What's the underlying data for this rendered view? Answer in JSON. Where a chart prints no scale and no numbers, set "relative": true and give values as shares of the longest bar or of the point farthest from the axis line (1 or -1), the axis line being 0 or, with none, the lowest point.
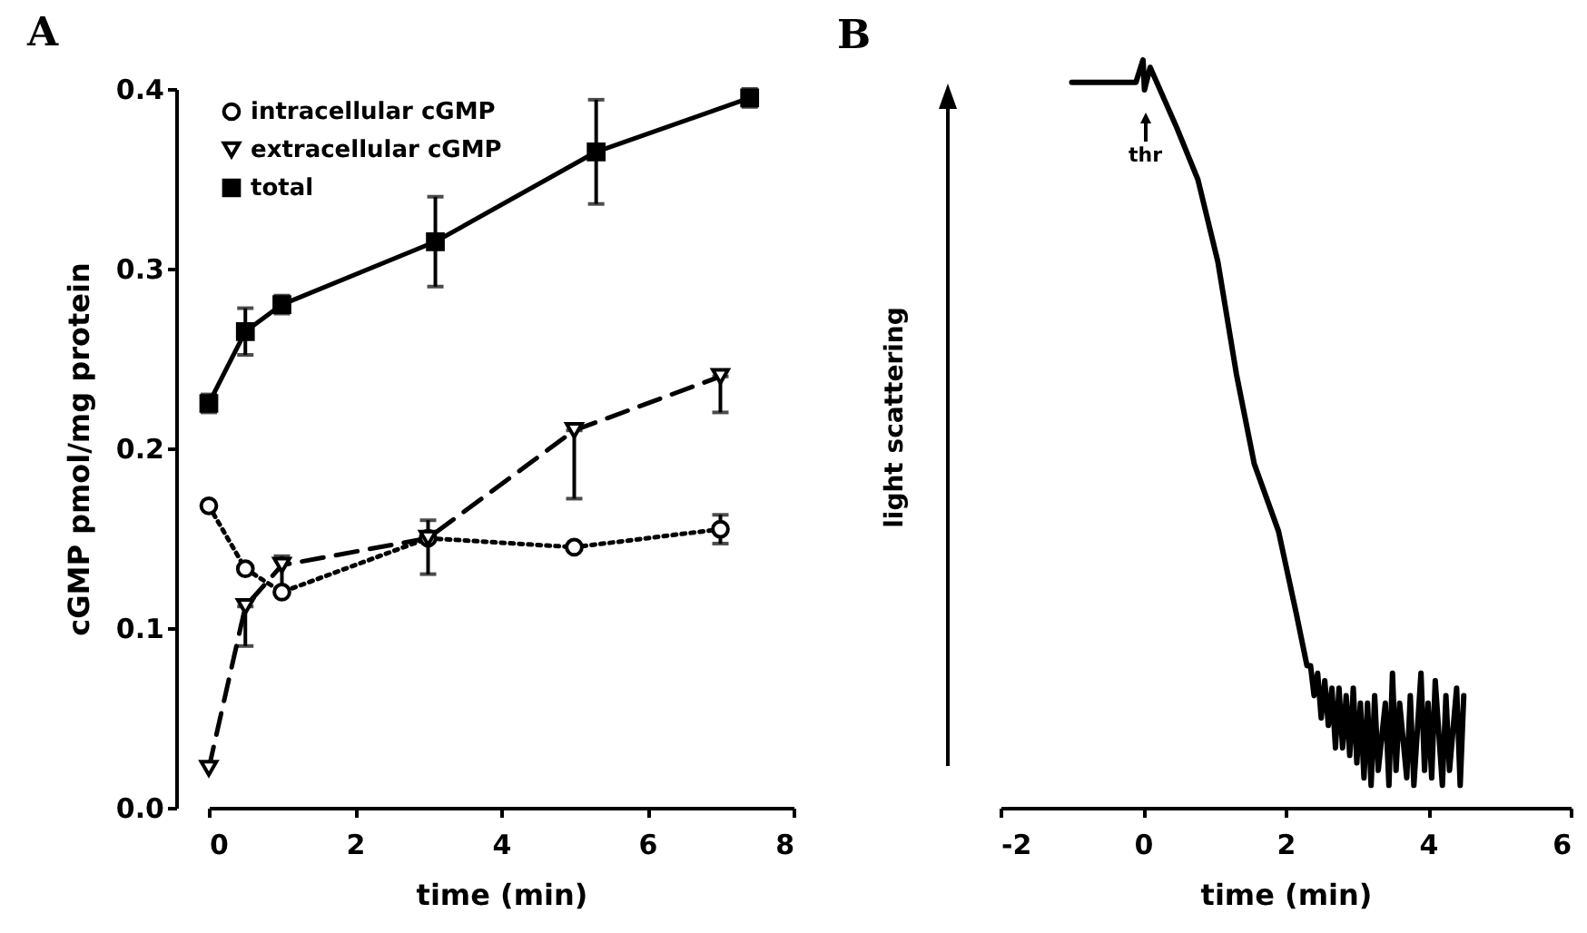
{
  "chart_data": [
    {
      "type": "line",
      "title": "A",
      "xlabel": "time (min)",
      "ylabel": "cGMP pmol/mg protein",
      "xlim": [
        0,
        8
      ],
      "xticks": [
        0,
        2,
        4,
        6,
        8
      ],
      "ylim": [
        0,
        0.4
      ],
      "yticks": [
        {
          "value": 0,
          "label": "0.0"
        },
        0.1,
        0.2,
        0.3,
        0.4
      ],
      "legend": "top left",
      "grid": false,
      "series": [
        {
          "name": "intracellular cGMP",
          "color": "#000000",
          "marker": "circle",
          "line_style": "dotted",
          "x": [
            0,
            0.5,
            1,
            3,
            5,
            7
          ],
          "values": [
            0.168,
            0.133,
            0.12,
            0.15,
            0.145,
            0.155
          ],
          "errors": [
            null,
            null,
            null,
            null,
            null,
            0.008
          ]
        },
        {
          "name": "extracellular cGMP",
          "color": "#000000",
          "marker": "triangle",
          "line_style": "dashed",
          "x": [
            0,
            0.5,
            1,
            3,
            5,
            7
          ],
          "values": [
            0.022,
            0.112,
            0.135,
            0.15,
            0.21,
            0.24
          ],
          "errors": [
            null,
            [
              0.09,
              0.112
            ],
            [
              0.12,
              0.14
            ],
            [
              0.13,
              0.16
            ],
            [
              0.172,
              0.21
            ],
            [
              0.22,
              0.24
            ]
          ]
        },
        {
          "name": "total",
          "color": "#000000",
          "marker": "square",
          "line_style": "solid",
          "x": [
            0,
            0.5,
            1,
            3.1,
            5.3,
            7.4
          ],
          "values": [
            0.225,
            0.265,
            0.28,
            0.315,
            0.365,
            0.395
          ],
          "errors": [
            0.005,
            0.013,
            0.005,
            0.025,
            0.029,
            0.005
          ]
        }
      ]
    },
    {
      "type": "line",
      "title": "B",
      "xlabel": "time (min)",
      "ylabel": "light scattering",
      "xlim": [
        -2,
        6
      ],
      "xticks": [
        -2,
        0,
        2,
        4,
        6
      ],
      "relative": true,
      "legend": false,
      "grid": false,
      "annotations": [
        "thr"
      ],
      "series": [
        {
          "color": "#000000",
          "line_style": "solid",
          "marker": "none",
          "x": [
            -1.0,
            -0.1,
            0,
            0.02,
            0.1,
            0.47,
            0.77,
            1.05,
            1.31,
            1.56,
            1.9,
            2.15,
            2.3,
            2.35,
            2.4,
            2.45,
            2.5,
            2.55,
            2.6,
            2.65,
            2.7,
            2.75,
            2.8,
            2.85,
            2.9,
            2.95,
            3.0,
            3.05,
            3.1,
            3.15,
            3.2,
            3.25,
            3.3,
            3.4,
            3.45,
            3.5,
            3.55,
            3.6,
            3.7,
            3.75,
            3.8,
            3.9,
            3.95,
            4.0,
            4.05,
            4.1,
            4.2,
            4.25,
            4.3,
            4.4,
            4.45,
            4.5
          ],
          "values": [
            0.97,
            0.97,
            1.0,
            0.96,
            0.99,
            0.91,
            0.84,
            0.73,
            0.58,
            0.46,
            0.37,
            0.26,
            0.19,
            0.19,
            0.15,
            0.18,
            0.12,
            0.17,
            0.11,
            0.16,
            0.08,
            0.16,
            0.08,
            0.15,
            0.07,
            0.16,
            0.06,
            0.14,
            0.04,
            0.14,
            0.03,
            0.15,
            0.05,
            0.14,
            0.03,
            0.18,
            0.05,
            0.14,
            0.04,
            0.15,
            0.03,
            0.18,
            0.05,
            0.14,
            0.04,
            0.17,
            0.03,
            0.15,
            0.05,
            0.16,
            0.03,
            0.15
          ]
        }
      ]
    }
  ]
}
